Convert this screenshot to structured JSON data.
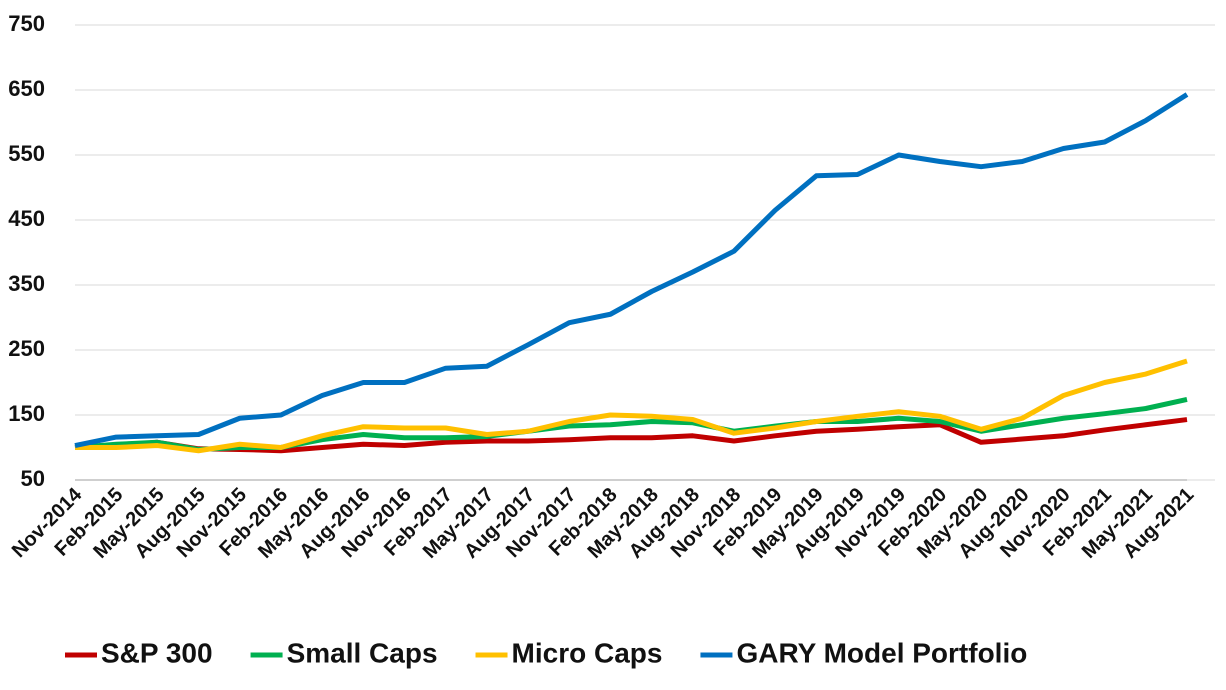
{
  "chart_data": {
    "type": "line",
    "categories": [
      "Nov-2014",
      "Feb-2015",
      "May-2015",
      "Aug-2015",
      "Nov-2015",
      "Feb-2016",
      "May-2016",
      "Aug-2016",
      "Nov-2016",
      "Feb-2017",
      "May-2017",
      "Aug-2017",
      "Nov-2017",
      "Feb-2018",
      "May-2018",
      "Aug-2018",
      "Nov-2018",
      "Feb-2019",
      "May-2019",
      "Aug-2019",
      "Nov-2019",
      "Feb-2020",
      "May-2020",
      "Aug-2020",
      "Nov-2020",
      "Feb-2021",
      "May-2021",
      "Aug-2021"
    ],
    "series": [
      {
        "name": "S&P 300",
        "color": "#c00000",
        "values": [
          100,
          102,
          108,
          98,
          97,
          95,
          100,
          105,
          103,
          108,
          110,
          110,
          112,
          115,
          115,
          118,
          110,
          118,
          125,
          128,
          132,
          135,
          108,
          113,
          118,
          127,
          135,
          143
        ]
      },
      {
        "name": "Small Caps",
        "color": "#00b050",
        "values": [
          100,
          105,
          108,
          97,
          100,
          100,
          112,
          120,
          115,
          115,
          117,
          125,
          133,
          135,
          140,
          138,
          125,
          133,
          140,
          140,
          145,
          140,
          125,
          135,
          145,
          152,
          160,
          174
        ]
      },
      {
        "name": "Micro Caps",
        "color": "#ffc000",
        "values": [
          100,
          100,
          103,
          95,
          105,
          100,
          118,
          132,
          130,
          130,
          120,
          125,
          140,
          150,
          148,
          143,
          122,
          130,
          140,
          148,
          155,
          148,
          128,
          145,
          180,
          200,
          213,
          233
        ]
      },
      {
        "name": "GARY Model Portfolio",
        "color": "#0070c0",
        "values": [
          103,
          116,
          118,
          120,
          145,
          150,
          180,
          200,
          200,
          222,
          225,
          258,
          292,
          305,
          340,
          370,
          402,
          465,
          518,
          520,
          550,
          540,
          532,
          540,
          560,
          570,
          603,
          643
        ]
      }
    ],
    "ylim": [
      50,
      750
    ],
    "yticks": [
      50,
      150,
      250,
      350,
      450,
      550,
      650,
      750
    ],
    "grid": true,
    "legend": "bottom"
  }
}
